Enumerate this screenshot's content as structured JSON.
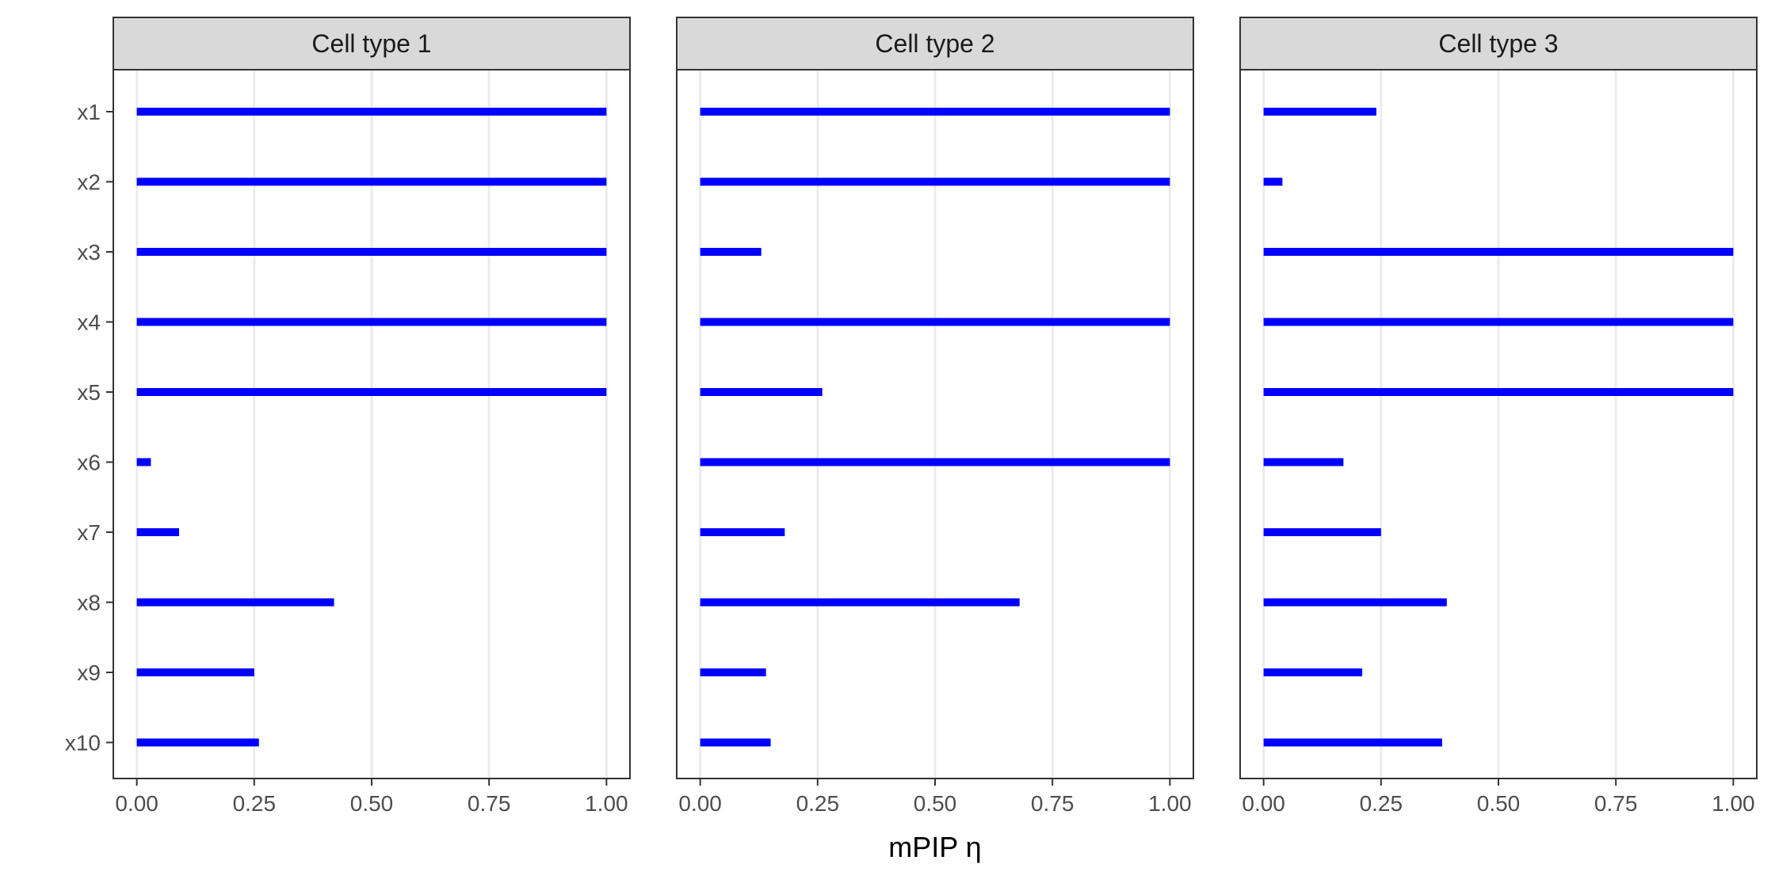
{
  "chart_data": {
    "type": "bar",
    "orientation": "horizontal",
    "xlabel": "mPIP η",
    "ylabel": "",
    "xlim": [
      -0.05,
      1.05
    ],
    "x_ticks": [
      0,
      0.25,
      0.5,
      0.75,
      1
    ],
    "x_tick_labels": [
      "0.00",
      "0.25",
      "0.50",
      "0.75",
      "1.00"
    ],
    "categories": [
      "x1",
      "x2",
      "x3",
      "x4",
      "x5",
      "x6",
      "x7",
      "x8",
      "x9",
      "x10"
    ],
    "grid": "vertical-major",
    "colors": {
      "bar": "#0000ff",
      "strip": "#d9d9d9",
      "grid": "#ebebeb"
    },
    "facets": [
      {
        "name": "Cell type 1",
        "values": [
          1.0,
          1.0,
          1.0,
          1.0,
          1.0,
          0.03,
          0.09,
          0.42,
          0.25,
          0.26
        ]
      },
      {
        "name": "Cell type 2",
        "values": [
          1.0,
          1.0,
          0.13,
          1.0,
          0.26,
          1.0,
          0.18,
          0.68,
          0.14,
          0.15
        ]
      },
      {
        "name": "Cell type 3",
        "values": [
          0.24,
          0.04,
          1.0,
          1.0,
          1.0,
          0.17,
          0.25,
          0.39,
          0.21,
          0.38
        ]
      }
    ]
  }
}
